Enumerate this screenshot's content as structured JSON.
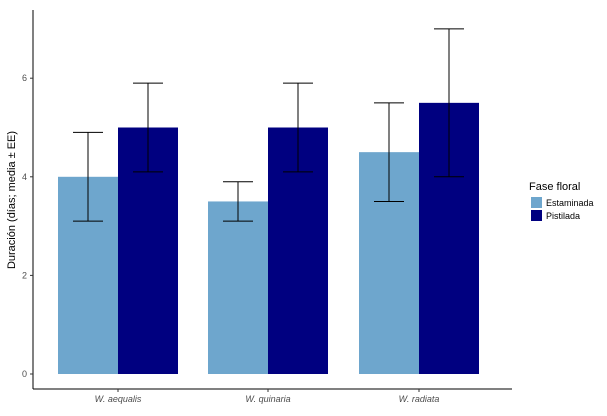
{
  "chart_data": {
    "type": "bar",
    "categories": [
      "W. aequalis",
      "W. quinaria",
      "W. radiata"
    ],
    "series": [
      {
        "name": "Estaminada",
        "color": "#6ea6cd",
        "values": [
          4.0,
          3.5,
          4.5
        ],
        "error_low": [
          3.1,
          3.1,
          3.5
        ],
        "error_high": [
          4.9,
          3.9,
          5.5
        ]
      },
      {
        "name": "Pistilada",
        "color": "#000080",
        "values": [
          5.0,
          5.0,
          5.5
        ],
        "error_low": [
          4.1,
          4.1,
          4.0
        ],
        "error_high": [
          5.9,
          5.9,
          7.0
        ]
      }
    ],
    "title": "",
    "xlabel": "",
    "ylabel": "Duración (días; media ± EE)",
    "ylim": [
      0,
      7.35
    ],
    "yticks": [
      0,
      2,
      4,
      6
    ],
    "ytick_labels": [
      "0",
      "2",
      "4",
      "6"
    ],
    "grid": false,
    "legend": {
      "title": "Fase floral",
      "position": "right"
    }
  }
}
